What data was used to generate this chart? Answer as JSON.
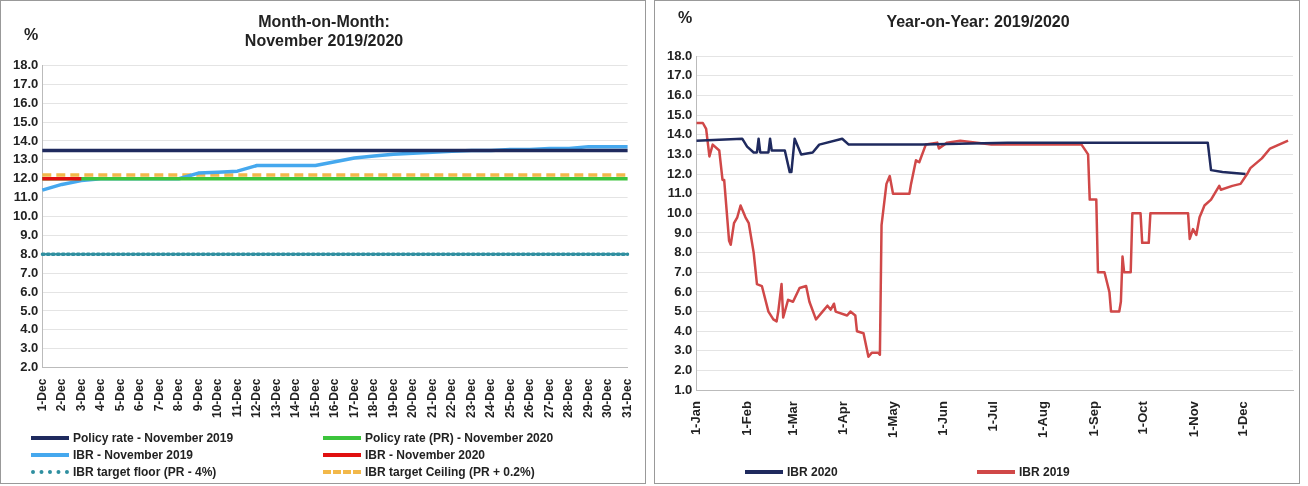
{
  "chart_data": [
    {
      "type": "line",
      "title": "Month-on-Month:\nNovember 2019/2020",
      "ylabel": "%",
      "categories": [
        "1-Dec",
        "2-Dec",
        "3-Dec",
        "4-Dec",
        "5-Dec",
        "6-Dec",
        "7-Dec",
        "8-Dec",
        "9-Dec",
        "10-Dec",
        "11-Dec",
        "12-Dec",
        "13-Dec",
        "14-Dec",
        "15-Dec",
        "16-Dec",
        "17-Dec",
        "18-Dec",
        "19-Dec",
        "20-Dec",
        "21-Dec",
        "22-Dec",
        "23-Dec",
        "24-Dec",
        "25-Dec",
        "26-Dec",
        "27-Dec",
        "28-Dec",
        "29-Dec",
        "30-Dec",
        "31-Dec"
      ],
      "ylim": [
        2,
        18
      ],
      "yticks": [
        {
          "value": 2,
          "label": "2.0"
        },
        {
          "value": 3,
          "label": "3.0"
        },
        {
          "value": 4,
          "label": "4.0"
        },
        {
          "value": 5,
          "label": "5.0"
        },
        {
          "value": 6,
          "label": "6.0"
        },
        {
          "value": 7,
          "label": "7.0"
        },
        {
          "value": 8,
          "label": "8.0"
        },
        {
          "value": 9,
          "label": "9.0"
        },
        {
          "value": 10,
          "label": "10.0"
        },
        {
          "value": 11,
          "label": "11.0"
        },
        {
          "value": 12,
          "label": "12.0"
        },
        {
          "value": 13,
          "label": "13.0"
        },
        {
          "value": 14,
          "label": "14.0"
        },
        {
          "value": 15,
          "label": "15.0"
        },
        {
          "value": 16,
          "label": "16.0"
        },
        {
          "value": 17,
          "label": "17.0"
        },
        {
          "value": 18,
          "label": "18.0"
        }
      ],
      "grid": "y",
      "legend": "bottom",
      "marker": "none",
      "series": [
        {
          "name": "Policy rate - November 2019",
          "color": "#1f2a5e",
          "line_style": "solid",
          "values": [
            13.5,
            13.5,
            13.5,
            13.5,
            13.5,
            13.5,
            13.5,
            13.5,
            13.5,
            13.5,
            13.5,
            13.5,
            13.5,
            13.5,
            13.5,
            13.5,
            13.5,
            13.5,
            13.5,
            13.5,
            13.5,
            13.5,
            13.5,
            13.5,
            13.5,
            13.5,
            13.5,
            13.5,
            13.5,
            13.5,
            13.5
          ]
        },
        {
          "name": "Policy rate (PR) - November 2020",
          "color": "#3cc43c",
          "line_style": "solid",
          "values": [
            12.0,
            12.0,
            12.0,
            12.0,
            12.0,
            12.0,
            12.0,
            12.0,
            12.0,
            12.0,
            12.0,
            12.0,
            12.0,
            12.0,
            12.0,
            12.0,
            12.0,
            12.0,
            12.0,
            12.0,
            12.0,
            12.0,
            12.0,
            12.0,
            12.0,
            12.0,
            12.0,
            12.0,
            12.0,
            12.0,
            12.0
          ]
        },
        {
          "name": "IBR - November 2019",
          "color": "#45a8ee",
          "line_style": "solid",
          "values": [
            11.4,
            11.7,
            11.9,
            12.0,
            12.0,
            12.0,
            12.0,
            12.0,
            12.3,
            12.35,
            12.4,
            12.7,
            12.7,
            12.7,
            12.7,
            12.9,
            13.1,
            13.2,
            13.3,
            13.35,
            13.4,
            13.45,
            13.5,
            13.5,
            13.55,
            13.55,
            13.6,
            13.6,
            13.7,
            13.7,
            13.7
          ]
        },
        {
          "name": "IBR - November 2020",
          "color": "#e01010",
          "line_style": "solid",
          "values": [
            12.0,
            12.0,
            12.0,
            null,
            null,
            null,
            null,
            null,
            null,
            null,
            null,
            null,
            null,
            null,
            null,
            null,
            null,
            null,
            null,
            null,
            null,
            null,
            null,
            null,
            null,
            null,
            null,
            null,
            null,
            null,
            null
          ]
        },
        {
          "name": "IBR target floor (PR - 4%)",
          "color": "#2f8fa0",
          "line_style": "dotted",
          "values": [
            8.0,
            8.0,
            8.0,
            8.0,
            8.0,
            8.0,
            8.0,
            8.0,
            8.0,
            8.0,
            8.0,
            8.0,
            8.0,
            8.0,
            8.0,
            8.0,
            8.0,
            8.0,
            8.0,
            8.0,
            8.0,
            8.0,
            8.0,
            8.0,
            8.0,
            8.0,
            8.0,
            8.0,
            8.0,
            8.0,
            8.0
          ]
        },
        {
          "name": "IBR target Ceiling (PR + 0.2%)",
          "color": "#f2b84a",
          "line_style": "dashed",
          "values": [
            12.2,
            12.2,
            12.2,
            12.2,
            12.2,
            12.2,
            12.2,
            12.2,
            12.2,
            12.2,
            12.2,
            12.2,
            12.2,
            12.2,
            12.2,
            12.2,
            12.2,
            12.2,
            12.2,
            12.2,
            12.2,
            12.2,
            12.2,
            12.2,
            12.2,
            12.2,
            12.2,
            12.2,
            12.2,
            12.2,
            12.2
          ]
        }
      ]
    },
    {
      "type": "line",
      "title": "Year-on-Year: 2019/2020",
      "ylabel": "%",
      "xlim": [
        "--01-01",
        "--12-31"
      ],
      "xticks": [
        {
          "value": "--01-01",
          "label": "1-Jan"
        },
        {
          "value": "--02-01",
          "label": "1-Feb"
        },
        {
          "value": "--03-01",
          "label": "1-Mar"
        },
        {
          "value": "--04-01",
          "label": "1-Apr"
        },
        {
          "value": "--05-01",
          "label": "1-May"
        },
        {
          "value": "--06-01",
          "label": "1-Jun"
        },
        {
          "value": "--07-01",
          "label": "1-Jul"
        },
        {
          "value": "--08-01",
          "label": "1-Aug"
        },
        {
          "value": "--09-01",
          "label": "1-Sep"
        },
        {
          "value": "--10-01",
          "label": "1-Oct"
        },
        {
          "value": "--11-01",
          "label": "1-Nov"
        },
        {
          "value": "--12-01",
          "label": "1-Dec"
        }
      ],
      "ylim": [
        1,
        18
      ],
      "yticks": [
        {
          "value": 1,
          "label": "1.0"
        },
        {
          "value": 2,
          "label": "2.0"
        },
        {
          "value": 3,
          "label": "3.0"
        },
        {
          "value": 4,
          "label": "4.0"
        },
        {
          "value": 5,
          "label": "5.0"
        },
        {
          "value": 6,
          "label": "6.0"
        },
        {
          "value": 7,
          "label": "7.0"
        },
        {
          "value": 8,
          "label": "8.0"
        },
        {
          "value": 9,
          "label": "9.0"
        },
        {
          "value": 10,
          "label": "10.0"
        },
        {
          "value": 11,
          "label": "11.0"
        },
        {
          "value": 12,
          "label": "12.0"
        },
        {
          "value": 13,
          "label": "13.0"
        },
        {
          "value": 14,
          "label": "14.0"
        },
        {
          "value": 15,
          "label": "15.0"
        },
        {
          "value": 16,
          "label": "16.0"
        },
        {
          "value": 17,
          "label": "17.0"
        },
        {
          "value": 18,
          "label": "18.0"
        }
      ],
      "grid": "y",
      "legend": "bottom",
      "marker": "none",
      "line_style": "solid",
      "series": [
        {
          "name": "IBR 2020",
          "color": "#1f2a5e",
          "x": [
            "--01-01",
            "--01-29",
            "--02-01",
            "--02-05",
            "--02-07",
            "--02-08",
            "--02-09",
            "--02-14",
            "--02-15",
            "--02-16",
            "--02-24",
            "--02-27",
            "--02-28",
            "--03-02",
            "--03-06",
            "--03-13",
            "--03-17",
            "--03-31",
            "--04-04",
            "--05-19",
            "--07-10",
            "--09-27",
            "--11-09",
            "--11-11",
            "--11-18",
            "--12-02"
          ],
          "values": [
            13.7,
            13.8,
            13.4,
            13.1,
            13.1,
            13.8,
            13.1,
            13.1,
            13.8,
            13.2,
            13.2,
            12.1,
            12.1,
            13.8,
            13.0,
            13.1,
            13.5,
            13.8,
            13.5,
            13.5,
            13.6,
            13.6,
            13.6,
            12.2,
            12.1,
            12.0
          ]
        },
        {
          "name": "IBR 2019",
          "color": "#d04848",
          "x": [
            "--01-01",
            "--01-05",
            "--01-07",
            "--01-09",
            "--01-11",
            "--01-15",
            "--01-17",
            "--01-18",
            "--01-21",
            "--01-22",
            "--01-24",
            "--01-26",
            "--01-28",
            "--01-31",
            "--02-02",
            "--02-05",
            "--02-07",
            "--02-10",
            "--02-14",
            "--02-17",
            "--02-19",
            "--02-20",
            "--02-22",
            "--02-23",
            "--02-26",
            "--03-01",
            "--03-05",
            "--03-09",
            "--03-11",
            "--03-15",
            "--03-19",
            "--03-22",
            "--03-24",
            "--03-26",
            "--03-27",
            "--04-03",
            "--04-05",
            "--04-08",
            "--04-09",
            "--04-13",
            "--04-16",
            "--04-18",
            "--04-22",
            "--04-23",
            "--04-24",
            "--04-27",
            "--04-29",
            "--05-01",
            "--05-11",
            "--05-12",
            "--05-15",
            "--05-17",
            "--05-21",
            "--05-28",
            "--05-29",
            "--06-03",
            "--06-11",
            "--06-30",
            "--08-24",
            "--08-28",
            "--08-29",
            "--09-02",
            "--09-03",
            "--09-07",
            "--09-10",
            "--09-11",
            "--09-16",
            "--09-17",
            "--09-18",
            "--09-19",
            "--09-23",
            "--09-24",
            "--09-29",
            "--09-30",
            "--10-04",
            "--10-05",
            "--10-28",
            "--10-29",
            "--10-31",
            "--11-02",
            "--11-04",
            "--11-07",
            "--11-11",
            "--11-16",
            "--11-17",
            "--11-24",
            "--11-29",
            "--12-03",
            "--12-05",
            "--12-12",
            "--12-17",
            "--12-28"
          ],
          "values": [
            14.6,
            14.6,
            14.3,
            12.9,
            13.5,
            13.2,
            11.7,
            11.7,
            8.6,
            8.4,
            9.5,
            9.8,
            10.4,
            9.8,
            9.5,
            8.0,
            6.4,
            6.3,
            5.0,
            4.6,
            4.5,
            5.0,
            6.4,
            4.7,
            5.6,
            5.5,
            6.2,
            6.3,
            5.5,
            4.6,
            5.0,
            5.3,
            5.1,
            5.4,
            5.0,
            4.8,
            5.0,
            4.8,
            4.0,
            3.9,
            2.7,
            2.9,
            2.9,
            2.8,
            9.4,
            11.5,
            11.9,
            11.0,
            11.0,
            11.5,
            12.7,
            12.6,
            13.5,
            13.6,
            13.3,
            13.6,
            13.7,
            13.5,
            13.5,
            13.0,
            10.7,
            10.7,
            7.0,
            7.0,
            6.0,
            5.0,
            5.0,
            5.5,
            7.8,
            7.0,
            7.0,
            10.0,
            10.0,
            8.5,
            8.5,
            10.0,
            10.0,
            8.7,
            9.2,
            8.9,
            9.8,
            10.4,
            10.7,
            11.4,
            11.2,
            11.4,
            11.5,
            12.0,
            12.3,
            12.8,
            13.3,
            13.7
          ]
        }
      ]
    }
  ]
}
